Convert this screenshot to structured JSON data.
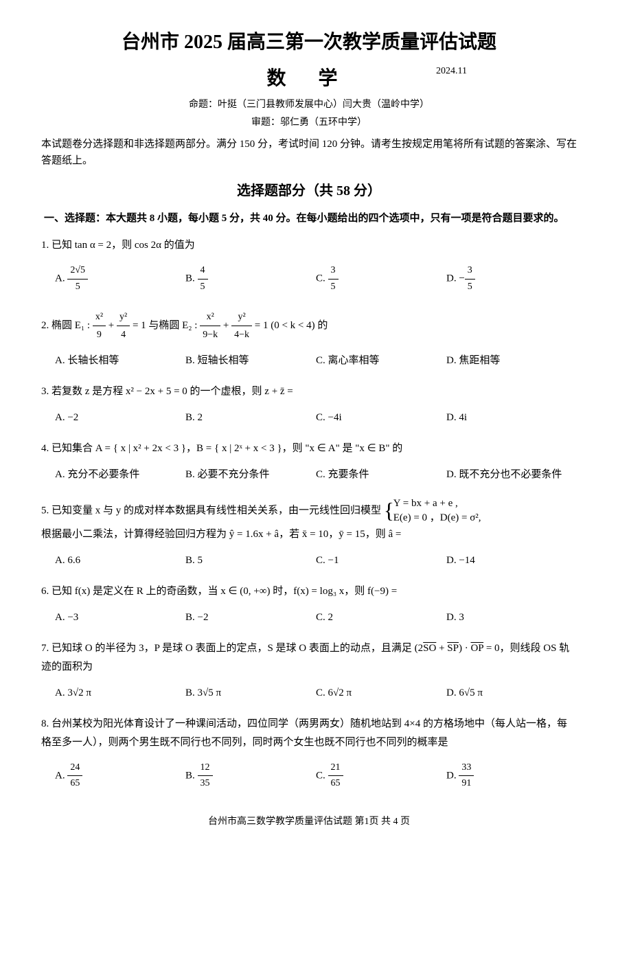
{
  "header": {
    "title_main": "台州市 2025 届高三第一次教学质量评估试题",
    "title_sub": "数 学",
    "date": "2024.11",
    "credits1": "命题：叶挺（三门县教师发展中心）闫大贵（温岭中学）",
    "credits2": "审题：邬仁勇（五环中学）",
    "instructions": "本试题卷分选择题和非选择题两部分。满分 150 分，考试时间 120 分钟。请考生按规定用笔将所有试题的答案涂、写在答题纸上。"
  },
  "section1": {
    "title": "选择题部分（共 58 分）",
    "desc": "一、选择题：本大题共 8 小题，每小题 5 分，共 40 分。在每小题给出的四个选项中，只有一项是符合题目要求的。"
  },
  "q1": {
    "text": "1. 已知 tan α = 2，则 cos 2α 的值为",
    "optA_prefix": "A. ",
    "optA_num": "2√5",
    "optA_den": "5",
    "optB_prefix": "B. ",
    "optB_num": "4",
    "optB_den": "5",
    "optC_prefix": "C. ",
    "optC_num": "3",
    "optC_den": "5",
    "optD_prefix": "D. −",
    "optD_num": "3",
    "optD_den": "5"
  },
  "q2": {
    "prefix": "2. 椭圆 E₁ : ",
    "e1_n1": "x²",
    "e1_d1": "9",
    "plus1": " + ",
    "e1_n2": "y²",
    "e1_d2": "4",
    "mid": " = 1 与椭圆 E₂ : ",
    "e2_n1": "x²",
    "e2_d1": "9−k",
    "plus2": " + ",
    "e2_n2": "y²",
    "e2_d2": "4−k",
    "suffix": " = 1 (0 < k < 4) 的",
    "optA": "A. 长轴长相等",
    "optB": "B. 短轴长相等",
    "optC": "C. 离心率相等",
    "optD": "D. 焦距相等"
  },
  "q3": {
    "text": "3. 若复数 z 是方程 x² − 2x + 5 = 0 的一个虚根，则 z + z̄ =",
    "optA": "A. −2",
    "optB": "B. 2",
    "optC": "C. −4i",
    "optD": "D. 4i"
  },
  "q4": {
    "text": "4. 已知集合 A = { x | x² + 2x < 3 }，B = { x | 2ˣ + x < 3 }，则 \"x ∈ A\" 是 \"x ∈ B\" 的",
    "optA": "A. 充分不必要条件",
    "optB": "B. 必要不充分条件",
    "optC": "C. 充要条件",
    "optD": "D. 既不充分也不必要条件"
  },
  "q5": {
    "text_p1": "5. 已知变量 x 与 y 的成对样本数据具有线性相关关系，由一元线性回归模型 ",
    "sys_l1": "Y = bx + a + e ,",
    "sys_l2": "E(e) = 0 ，D(e) = σ²,",
    "text_p2": "根据最小二乘法，计算得经验回归方程为 ŷ = 1.6x + â，若 x̄ = 10，ȳ = 15，则 â =",
    "optA": "A. 6.6",
    "optB": "B. 5",
    "optC": "C. −1",
    "optD": "D. −14"
  },
  "q6": {
    "text": "6. 已知 f(x) 是定义在 R 上的奇函数，当 x ∈ (0, +∞) 时，f(x) = log₃ x，则 f(−9) =",
    "optA": "A. −3",
    "optB": "B. −2",
    "optC": "C. 2",
    "optD": "D. 3"
  },
  "q7": {
    "text_p1": "7. 已知球 O 的半径为 3，P 是球 O 表面上的定点，S 是球 O 表面上的动点，且满足 (2",
    "vec1": "SO",
    "plus": " + ",
    "vec2": "SP",
    "dot": ") · ",
    "vec3": "OP",
    "text_p2": " = 0，则线段 OS 轨迹的面积为",
    "optA": "A. 3√2 π",
    "optB": "B. 3√5 π",
    "optC": "C. 6√2 π",
    "optD": "D. 6√5 π"
  },
  "q8": {
    "text": "8. 台州某校为阳光体育设计了一种课间活动，四位同学（两男两女）随机地站到 4×4 的方格场地中（每人站一格，每格至多一人），则两个男生既不同行也不同列，同时两个女生也既不同行也不同列的概率是",
    "optA_prefix": "A. ",
    "optA_num": "24",
    "optA_den": "65",
    "optB_prefix": "B. ",
    "optB_num": "12",
    "optB_den": "35",
    "optC_prefix": "C. ",
    "optC_num": "21",
    "optC_den": "65",
    "optD_prefix": "D. ",
    "optD_num": "33",
    "optD_den": "91"
  },
  "footer": {
    "text": "台州市高三数学教学质量评估试题 第1页 共 4 页"
  }
}
